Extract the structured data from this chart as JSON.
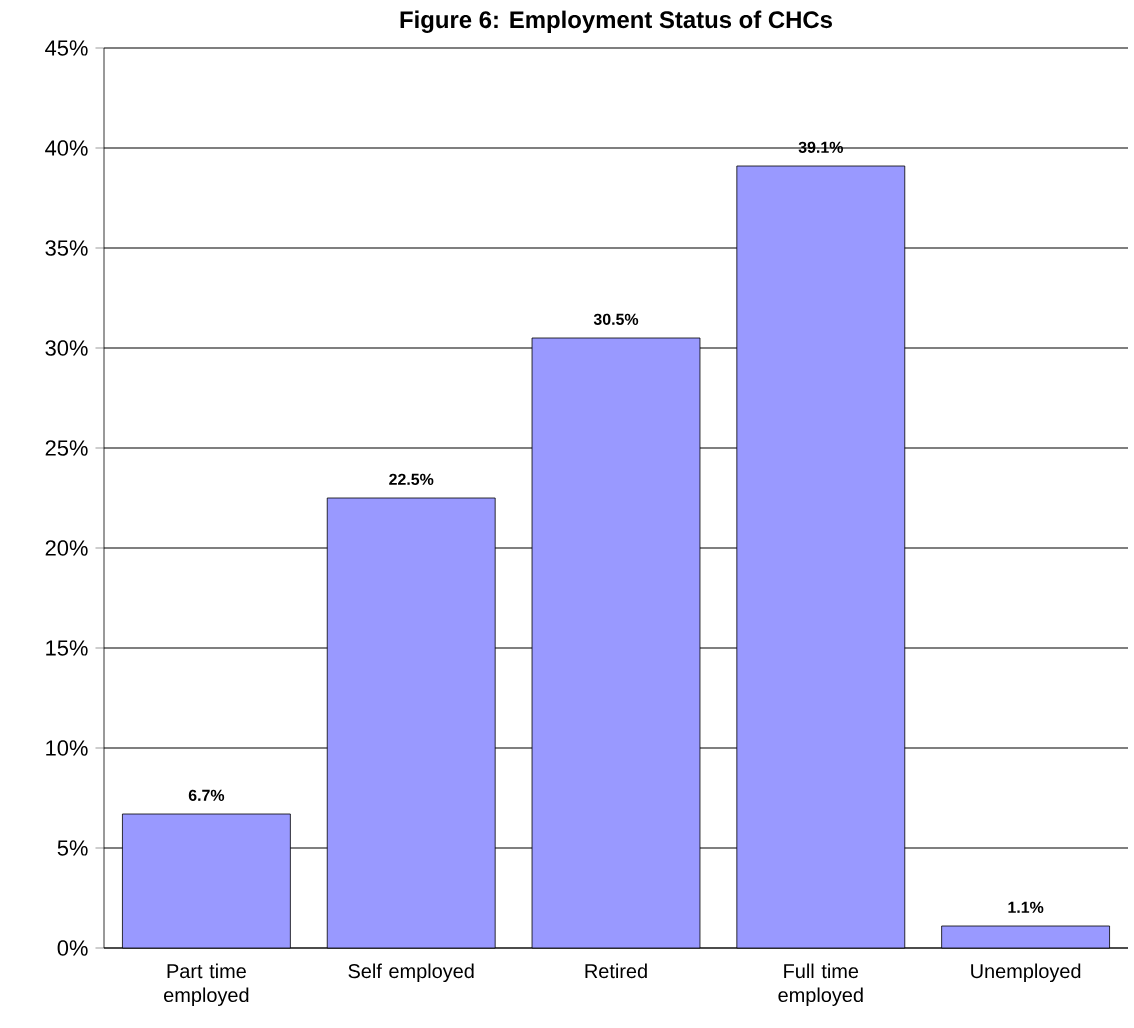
{
  "chart_data": {
    "type": "bar",
    "title": "Figure 6: Employment Status of CHCs",
    "categories": [
      "Part time employed",
      "Self employed",
      "Retired",
      "Full time employed",
      "Unemployed"
    ],
    "values": [
      6.7,
      22.5,
      30.5,
      39.1,
      1.1
    ],
    "value_labels": [
      "6.7%",
      "22.5%",
      "30.5%",
      "39.1%",
      "1.1%"
    ],
    "color": "#9999ff",
    "ylim": [
      0,
      45
    ],
    "yticks": [
      {
        "value": 0,
        "label": "0%"
      },
      {
        "value": 5,
        "label": "5%"
      },
      {
        "value": 10,
        "label": "10%"
      },
      {
        "value": 15,
        "label": "15%"
      },
      {
        "value": 20,
        "label": "20%"
      },
      {
        "value": 25,
        "label": "25%"
      },
      {
        "value": 30,
        "label": "30%"
      },
      {
        "value": 35,
        "label": "35%"
      },
      {
        "value": 40,
        "label": "40%"
      },
      {
        "value": 45,
        "label": "45%"
      }
    ],
    "grid": "y"
  }
}
